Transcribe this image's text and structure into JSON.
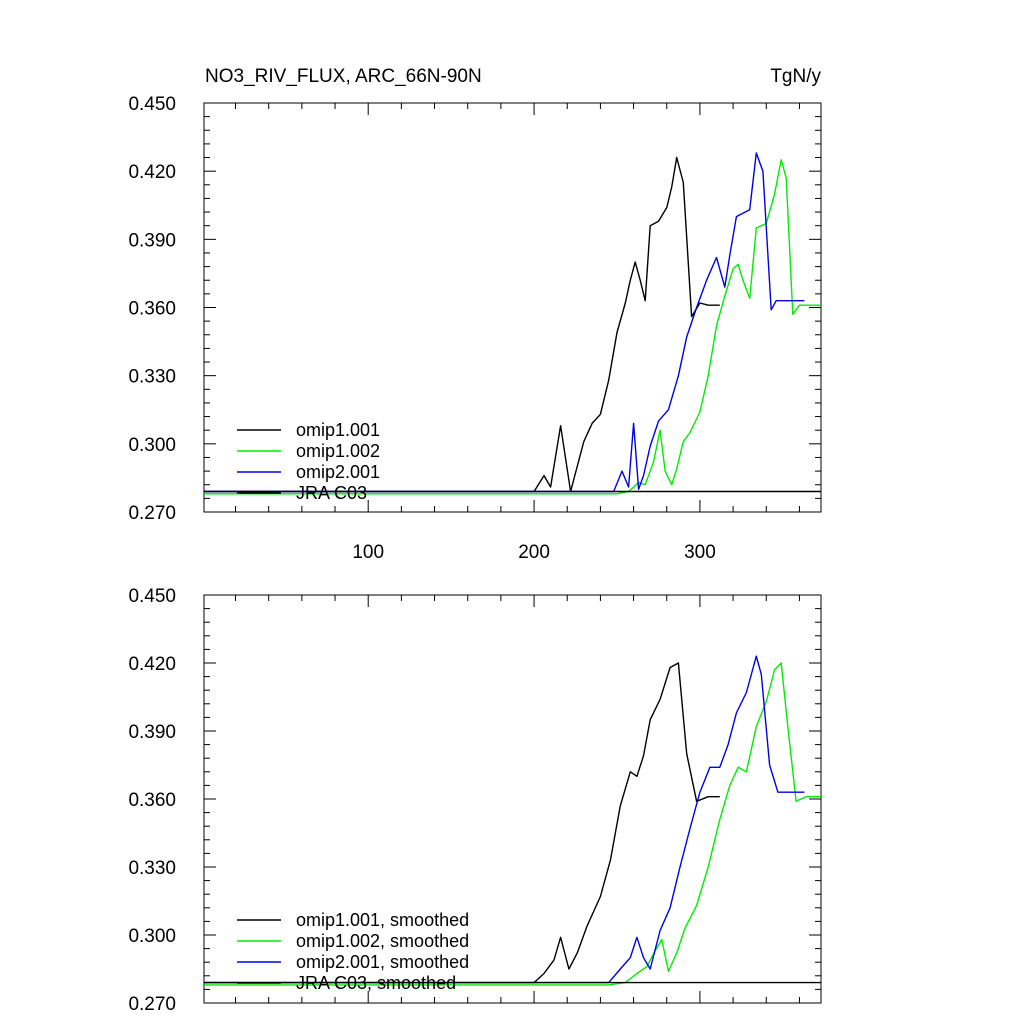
{
  "title_left": "NO3_RIV_FLUX, ARC_66N-90N",
  "title_right": "TgN/y",
  "colors": {
    "omip1.001": "#000000",
    "omip1.002": "#00ee00",
    "omip2.001": "#0000e6",
    "JRA C03": "#000000"
  },
  "chart_data": [
    {
      "type": "line",
      "xlim": [
        1,
        373
      ],
      "ylim": [
        0.27,
        0.45
      ],
      "x_ticks": [
        100,
        200,
        300
      ],
      "x_tick_labels": [
        "100",
        "200",
        "300"
      ],
      "y_ticks": [
        0.27,
        0.3,
        0.33,
        0.36,
        0.39,
        0.42,
        0.45
      ],
      "y_tick_labels": [
        "0.270",
        "0.300",
        "0.330",
        "0.360",
        "0.390",
        "0.420",
        "0.450"
      ],
      "legend_position": "lower-left",
      "series": [
        {
          "name": "omip1.001",
          "color": "#000000",
          "x": [
            1,
            200,
            206,
            210,
            216,
            222,
            230,
            235,
            240,
            245,
            250,
            255,
            258,
            261,
            264,
            267,
            270,
            275,
            280,
            283,
            286,
            290,
            295,
            300,
            305,
            312
          ],
          "y": [
            0.279,
            0.279,
            0.286,
            0.281,
            0.308,
            0.279,
            0.301,
            0.309,
            0.313,
            0.328,
            0.349,
            0.362,
            0.372,
            0.38,
            0.372,
            0.363,
            0.396,
            0.398,
            0.404,
            0.413,
            0.426,
            0.415,
            0.356,
            0.362,
            0.361,
            0.361
          ]
        },
        {
          "name": "omip1.002",
          "color": "#00ee00",
          "x": [
            1,
            245,
            250,
            257,
            263,
            267,
            272,
            276,
            279,
            283,
            286,
            290,
            294,
            300,
            305,
            310,
            315,
            320,
            323,
            326,
            330,
            334,
            340,
            345,
            349,
            352,
            356,
            360,
            366,
            373
          ],
          "y": [
            0.278,
            0.278,
            0.278,
            0.279,
            0.283,
            0.282,
            0.292,
            0.306,
            0.288,
            0.282,
            0.289,
            0.301,
            0.305,
            0.314,
            0.33,
            0.352,
            0.365,
            0.377,
            0.379,
            0.372,
            0.364,
            0.395,
            0.397,
            0.41,
            0.425,
            0.417,
            0.357,
            0.361,
            0.361,
            0.361
          ]
        },
        {
          "name": "omip2.001",
          "color": "#0000e6",
          "x": [
            1,
            248,
            253,
            257,
            260,
            263,
            266,
            270,
            275,
            281,
            287,
            292,
            298,
            304,
            310,
            315,
            318,
            322,
            330,
            334,
            338,
            343,
            346,
            350,
            355,
            363
          ],
          "y": [
            0.279,
            0.279,
            0.288,
            0.281,
            0.309,
            0.28,
            0.286,
            0.299,
            0.31,
            0.315,
            0.33,
            0.347,
            0.36,
            0.372,
            0.382,
            0.369,
            0.383,
            0.4,
            0.403,
            0.428,
            0.42,
            0.359,
            0.363,
            0.363,
            0.363,
            0.363
          ]
        },
        {
          "name": "JRA C03",
          "color": "#000000",
          "x": [
            1,
            373
          ],
          "y": [
            0.279,
            0.279
          ]
        }
      ]
    },
    {
      "type": "line",
      "xlim": [
        1,
        373
      ],
      "ylim": [
        0.27,
        0.45
      ],
      "x_ticks": [
        100,
        200,
        300
      ],
      "x_tick_labels": [],
      "y_ticks": [
        0.27,
        0.3,
        0.33,
        0.36,
        0.39,
        0.42,
        0.45
      ],
      "y_tick_labels": [
        "0.270",
        "0.300",
        "0.330",
        "0.360",
        "0.390",
        "0.420",
        "0.450"
      ],
      "legend_position": "lower-left",
      "series": [
        {
          "name": "omip1.001, smoothed",
          "color": "#000000",
          "x": [
            1,
            200,
            206,
            212,
            216,
            221,
            226,
            232,
            240,
            246,
            252,
            258,
            262,
            266,
            270,
            276,
            282,
            287,
            292,
            298,
            305,
            312
          ],
          "y": [
            0.279,
            0.279,
            0.283,
            0.289,
            0.299,
            0.285,
            0.292,
            0.304,
            0.317,
            0.333,
            0.357,
            0.372,
            0.37,
            0.379,
            0.395,
            0.404,
            0.418,
            0.42,
            0.38,
            0.359,
            0.361,
            0.361
          ]
        },
        {
          "name": "omip1.002, smoothed",
          "color": "#00ee00",
          "x": [
            1,
            245,
            255,
            262,
            268,
            273,
            277,
            281,
            286,
            291,
            298,
            305,
            312,
            318,
            323,
            328,
            334,
            340,
            345,
            349,
            353,
            358,
            364,
            373
          ],
          "y": [
            0.278,
            0.278,
            0.279,
            0.283,
            0.286,
            0.293,
            0.298,
            0.284,
            0.292,
            0.303,
            0.313,
            0.33,
            0.351,
            0.366,
            0.374,
            0.372,
            0.392,
            0.403,
            0.417,
            0.42,
            0.392,
            0.359,
            0.361,
            0.361
          ]
        },
        {
          "name": "omip2.001, smoothed",
          "color": "#0000e6",
          "x": [
            1,
            245,
            252,
            258,
            262,
            266,
            270,
            276,
            282,
            288,
            294,
            300,
            306,
            312,
            317,
            322,
            328,
            334,
            337,
            342,
            347,
            353,
            363
          ],
          "y": [
            0.279,
            0.279,
            0.285,
            0.29,
            0.299,
            0.29,
            0.285,
            0.302,
            0.312,
            0.33,
            0.347,
            0.363,
            0.374,
            0.374,
            0.384,
            0.398,
            0.407,
            0.423,
            0.415,
            0.375,
            0.363,
            0.363,
            0.363
          ]
        },
        {
          "name": "JRA C03, smoothed",
          "color": "#000000",
          "x": [
            1,
            373
          ],
          "y": [
            0.279,
            0.279
          ]
        }
      ]
    }
  ]
}
